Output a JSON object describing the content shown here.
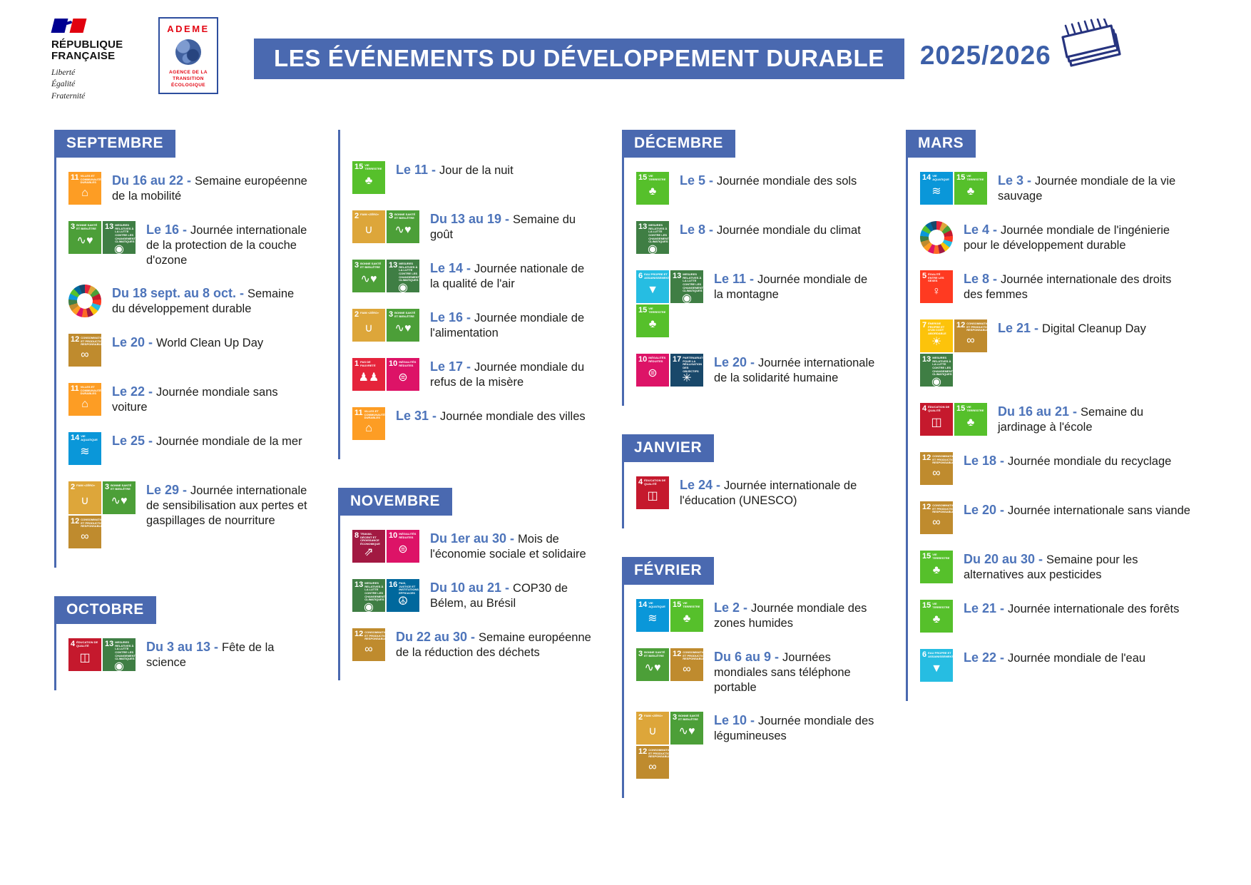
{
  "header": {
    "republique": {
      "line1": "RÉPUBLIQUE",
      "line2": "FRANÇAISE",
      "motto": [
        "Liberté",
        "Égalité",
        "Fraternité"
      ]
    },
    "ademe": {
      "name": "ADEME",
      "sub": [
        "AGENCE DE LA",
        "TRANSITION",
        "ÉCOLOGIQUE"
      ]
    },
    "title": "LES ÉVÉNEMENTS DU DÉVELOPPEMENT DURABLE",
    "edition": "2025/2026"
  },
  "colors": {
    "banner_blue": "#4a69b0",
    "date_blue": "#4d74ba",
    "edition_blue": "#3c5fa8",
    "text_black": "#1d1d1b",
    "ademe_red": "#e30613",
    "ademe_blue": "#2d4e9e",
    "flag_blue": "#000091",
    "flag_red": "#E1000F"
  },
  "sdg": {
    "1": {
      "num": "1",
      "label": "PAS DE PAUVRETÉ",
      "color": "#E5243B",
      "glyph": "♟♟"
    },
    "2": {
      "num": "2",
      "label": "FAIM «ZÉRO»",
      "color": "#DDA63A",
      "glyph": "∪"
    },
    "3": {
      "num": "3",
      "label": "BONNE SANTÉ ET BIEN-ÊTRE",
      "color": "#4C9F38",
      "glyph": "∿♥"
    },
    "4": {
      "num": "4",
      "label": "ÉDUCATION DE QUALITÉ",
      "color": "#C5192D",
      "glyph": "◫"
    },
    "5": {
      "num": "5",
      "label": "ÉGALITÉ ENTRE LES SEXES",
      "color": "#FF3A21",
      "glyph": "♀"
    },
    "6": {
      "num": "6",
      "label": "EAU PROPRE ET ASSAINISSEMENT",
      "color": "#26BDE2",
      "glyph": "▼"
    },
    "7": {
      "num": "7",
      "label": "ÉNERGIE PROPRE ET D'UN COÛT ABORDABLE",
      "color": "#FCC30B",
      "glyph": "☀"
    },
    "8": {
      "num": "8",
      "label": "TRAVAIL DÉCENT ET CROISSANCE ÉCONOMIQUE",
      "color": "#A21942",
      "glyph": "⇗"
    },
    "10": {
      "num": "10",
      "label": "INÉGALITÉS RÉDUITES",
      "color": "#DD1367",
      "glyph": "⊜"
    },
    "11": {
      "num": "11",
      "label": "VILLES ET COMMUNAUTÉS DURABLES",
      "color": "#FD9D24",
      "glyph": "⌂"
    },
    "12": {
      "num": "12",
      "label": "CONSOMMATION ET PRODUCTION RESPONSABLES",
      "color": "#BF8B2E",
      "glyph": "∞"
    },
    "13": {
      "num": "13",
      "label": "MESURES RELATIVES À LA LUTTE CONTRE LES CHANGEMENTS CLIMATIQUES",
      "color": "#3F7E44",
      "glyph": "◉"
    },
    "14": {
      "num": "14",
      "label": "VIE AQUATIQUE",
      "color": "#0A97D9",
      "glyph": "≋"
    },
    "15": {
      "num": "15",
      "label": "VIE TERRESTRE",
      "color": "#56C02B",
      "glyph": "♣"
    },
    "16": {
      "num": "16",
      "label": "PAIX, JUSTICE ET INSTITUTIONS EFFICACES",
      "color": "#00689D",
      "glyph": "☮"
    },
    "17": {
      "num": "17",
      "label": "PARTENARIATS POUR LA RÉALISATION DES OBJECTIFS",
      "color": "#19486A",
      "glyph": "✳"
    }
  },
  "wheel_colors": [
    "#E5243B",
    "#DDA63A",
    "#4C9F38",
    "#C5192D",
    "#FF3A21",
    "#26BDE2",
    "#FCC30B",
    "#A21942",
    "#FD6925",
    "#DD1367",
    "#FD9D24",
    "#BF8B2E",
    "#3F7E44",
    "#0A97D9",
    "#56C02B",
    "#00689D",
    "#19486A"
  ],
  "columns": [
    {
      "sections": [
        {
          "month": "SEPTEMBRE",
          "events": [
            {
              "icons": [
                [
                  "11"
                ]
              ],
              "date": "Du 16 au 22 -",
              "title": "Semaine européenne de la mobilité"
            },
            {
              "icons": [
                [
                  "3",
                  "13"
                ]
              ],
              "date": "Le 16 -",
              "title": "Journée internationale de la protection de la couche d'ozone"
            },
            {
              "icons": "wheel",
              "date": "Du 18 sept. au 8 oct. -",
              "title": "Semaine du développement durable"
            },
            {
              "icons": [
                [
                  "12"
                ]
              ],
              "date": "Le 20 -",
              "title": "World Clean Up Day"
            },
            {
              "icons": [
                [
                  "11"
                ]
              ],
              "date": "Le 22 -",
              "title": "Journée mondiale sans voiture"
            },
            {
              "icons": [
                [
                  "14"
                ]
              ],
              "date": "Le 25 -",
              "title": "Journée mondiale de la mer"
            },
            {
              "icons": [
                [
                  "2",
                  "3"
                ],
                [
                  "12"
                ]
              ],
              "date": "Le 29 -",
              "title": "Journée internationale de sensibilisation aux pertes et gaspillages de nourriture"
            }
          ]
        },
        {
          "month": "OCTOBRE",
          "events": [
            {
              "icons": [
                [
                  "4",
                  "13"
                ]
              ],
              "date": "Du 3 au 13 -",
              "title": "Fête de la science"
            }
          ]
        }
      ]
    },
    {
      "sections": [
        {
          "month": null,
          "events": [
            {
              "icons": [
                [
                  "15"
                ]
              ],
              "date": "Le 11 -",
              "title": "Jour de la nuit"
            },
            {
              "icons": [
                [
                  "2",
                  "3"
                ]
              ],
              "date": "Du 13 au 19 -",
              "title": "Semaine du goût"
            },
            {
              "icons": [
                [
                  "3",
                  "13"
                ]
              ],
              "date": "Le 14 -",
              "title": "Journée nationale de la qualité de l'air"
            },
            {
              "icons": [
                [
                  "2",
                  "3"
                ]
              ],
              "date": "Le 16 -",
              "title": "Journée mondiale de l'alimentation"
            },
            {
              "icons": [
                [
                  "1",
                  "10"
                ]
              ],
              "date": "Le 17 -",
              "title": "Journée mondiale du refus de la misère"
            },
            {
              "icons": [
                [
                  "11"
                ]
              ],
              "date": "Le 31 -",
              "title": "Journée mondiale des villes"
            }
          ]
        },
        {
          "month": "NOVEMBRE",
          "events": [
            {
              "icons": [
                [
                  "8",
                  "10"
                ]
              ],
              "date": "Du 1er au 30 -",
              "title": "Mois de l'économie sociale et solidaire"
            },
            {
              "icons": [
                [
                  "13",
                  "16"
                ]
              ],
              "date": "Du 10 au 21 -",
              "title": "COP30 de Bélem, au Brésil"
            },
            {
              "icons": [
                [
                  "12"
                ]
              ],
              "date": "Du 22 au 30 -",
              "title": "Semaine européenne de la réduction des déchets"
            }
          ]
        }
      ]
    },
    {
      "sections": [
        {
          "month": "DÉCEMBRE",
          "events": [
            {
              "icons": [
                [
                  "15"
                ]
              ],
              "date": "Le 5 -",
              "title": "Journée mondiale des sols"
            },
            {
              "icons": [
                [
                  "13"
                ]
              ],
              "date": "Le 8 -",
              "title": "Journée mondiale du climat"
            },
            {
              "icons": [
                [
                  "6",
                  "13"
                ],
                [
                  "15"
                ]
              ],
              "date": "Le 11 -",
              "title": "Journée mondiale de la montagne"
            },
            {
              "icons": [
                [
                  "10",
                  "17"
                ]
              ],
              "date": "Le 20 -",
              "title": "Journée internationale de la solidarité humaine"
            }
          ]
        },
        {
          "month": "JANVIER",
          "events": [
            {
              "icons": [
                [
                  "4"
                ]
              ],
              "date": "Le 24 -",
              "title": "Journée internationale de l'éducation (UNESCO)"
            }
          ]
        },
        {
          "month": "FÉVRIER",
          "events": [
            {
              "icons": [
                [
                  "14",
                  "15"
                ]
              ],
              "date": "Le 2 -",
              "title": "Journée mondiale des zones humides"
            },
            {
              "icons": [
                [
                  "3",
                  "12"
                ]
              ],
              "date": "Du 6 au 9 -",
              "title": "Journées mondiales sans téléphone portable"
            },
            {
              "icons": [
                [
                  "2",
                  "3"
                ],
                [
                  "12"
                ]
              ],
              "date": "Le 10 -",
              "title": "Journée mondiale des légumineuses"
            }
          ]
        }
      ]
    },
    {
      "sections": [
        {
          "month": "MARS",
          "events": [
            {
              "icons": [
                [
                  "14",
                  "15"
                ]
              ],
              "date": "Le 3 -",
              "title": "Journée mondiale de la vie sauvage"
            },
            {
              "icons": "wheel",
              "date": "Le 4 -",
              "title": "Journée mondiale de l'ingénierie pour le développement durable"
            },
            {
              "icons": [
                [
                  "5"
                ]
              ],
              "date": "Le 8 -",
              "title": "Journée internationale des droits des femmes"
            },
            {
              "icons": [
                [
                  "7",
                  "12"
                ],
                [
                  "13"
                ]
              ],
              "date": "Le 21 -",
              "title": "Digital Cleanup Day"
            },
            {
              "icons": [
                [
                  "4",
                  "15"
                ]
              ],
              "date": "Du 16 au 21 -",
              "title": "Semaine du jardinage à l'école"
            },
            {
              "icons": [
                [
                  "12"
                ]
              ],
              "date": "Le 18 -",
              "title": "Journée mondiale du recyclage"
            },
            {
              "icons": [
                [
                  "12"
                ]
              ],
              "date": "Le 20 -",
              "title": "Journée internationale sans viande"
            },
            {
              "icons": [
                [
                  "15"
                ]
              ],
              "date": "Du 20 au 30 -",
              "title": "Semaine pour les alternatives aux pesticides"
            },
            {
              "icons": [
                [
                  "15"
                ]
              ],
              "date": "Le 21 -",
              "title": "Journée internationale des forêts"
            },
            {
              "icons": [
                [
                  "6"
                ]
              ],
              "date": "Le 22 -",
              "title": "Journée mondiale de l'eau"
            }
          ]
        }
      ]
    }
  ]
}
